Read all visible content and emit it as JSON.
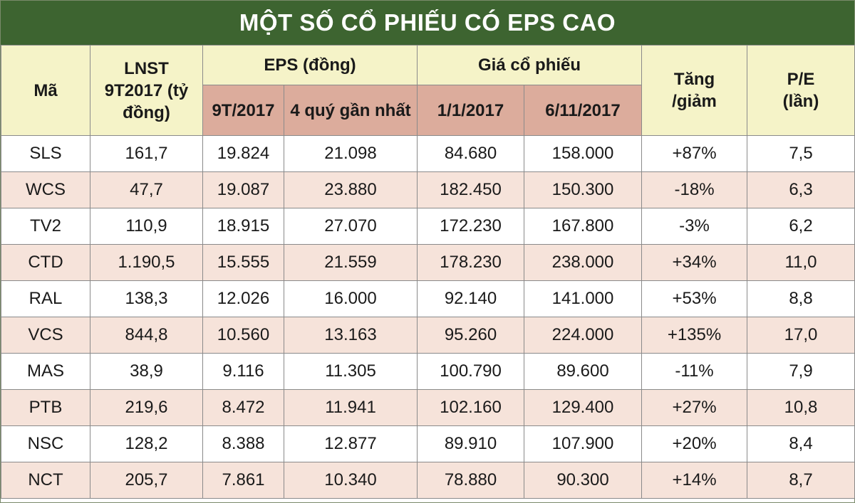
{
  "title": "MỘT SỐ CỔ PHIẾU CÓ EPS CAO",
  "colors": {
    "title_bg": "#3d6430",
    "header_bg": "#f5f3c8",
    "subheader_bg": "#dcac9c",
    "row_alt_bg": "#f6e3da"
  },
  "chart_data": {
    "type": "table",
    "title": "MỘT SỐ CỔ PHIẾU CÓ EPS CAO",
    "headers": {
      "ma": "Mã",
      "lnst": "LNST 9T2017 (tỷ đồng)",
      "eps": "EPS (đồng)",
      "eps_9t": "9T/2017",
      "eps_4q": "4 quý gần nhất",
      "gia": "Giá cổ phiếu",
      "gia_1_1": "1/1/2017",
      "gia_6_11": "6/11/2017",
      "tang_giam": "Tăng /giảm",
      "pe": "P/E (lần)"
    },
    "rows": [
      {
        "ma": "SLS",
        "lnst": "161,7",
        "eps_9t": "19.824",
        "eps_4q": "21.098",
        "gia_1_1": "84.680",
        "gia_6_11": "158.000",
        "tang_giam": "+87%",
        "pe": "7,5"
      },
      {
        "ma": "WCS",
        "lnst": "47,7",
        "eps_9t": "19.087",
        "eps_4q": "23.880",
        "gia_1_1": "182.450",
        "gia_6_11": "150.300",
        "tang_giam": "-18%",
        "pe": "6,3"
      },
      {
        "ma": "TV2",
        "lnst": "110,9",
        "eps_9t": "18.915",
        "eps_4q": "27.070",
        "gia_1_1": "172.230",
        "gia_6_11": "167.800",
        "tang_giam": "-3%",
        "pe": "6,2"
      },
      {
        "ma": "CTD",
        "lnst": "1.190,5",
        "eps_9t": "15.555",
        "eps_4q": "21.559",
        "gia_1_1": "178.230",
        "gia_6_11": "238.000",
        "tang_giam": "+34%",
        "pe": "11,0"
      },
      {
        "ma": "RAL",
        "lnst": "138,3",
        "eps_9t": "12.026",
        "eps_4q": "16.000",
        "gia_1_1": "92.140",
        "gia_6_11": "141.000",
        "tang_giam": "+53%",
        "pe": "8,8"
      },
      {
        "ma": "VCS",
        "lnst": "844,8",
        "eps_9t": "10.560",
        "eps_4q": "13.163",
        "gia_1_1": "95.260",
        "gia_6_11": "224.000",
        "tang_giam": "+135%",
        "pe": "17,0"
      },
      {
        "ma": "MAS",
        "lnst": "38,9",
        "eps_9t": "9.116",
        "eps_4q": "11.305",
        "gia_1_1": "100.790",
        "gia_6_11": "89.600",
        "tang_giam": "-11%",
        "pe": "7,9"
      },
      {
        "ma": "PTB",
        "lnst": "219,6",
        "eps_9t": "8.472",
        "eps_4q": "11.941",
        "gia_1_1": "102.160",
        "gia_6_11": "129.400",
        "tang_giam": "+27%",
        "pe": "10,8"
      },
      {
        "ma": "NSC",
        "lnst": "128,2",
        "eps_9t": "8.388",
        "eps_4q": "12.877",
        "gia_1_1": "89.910",
        "gia_6_11": "107.900",
        "tang_giam": "+20%",
        "pe": "8,4"
      },
      {
        "ma": "NCT",
        "lnst": "205,7",
        "eps_9t": "7.861",
        "eps_4q": "10.340",
        "gia_1_1": "78.880",
        "gia_6_11": "90.300",
        "tang_giam": "+14%",
        "pe": "8,7"
      }
    ]
  }
}
